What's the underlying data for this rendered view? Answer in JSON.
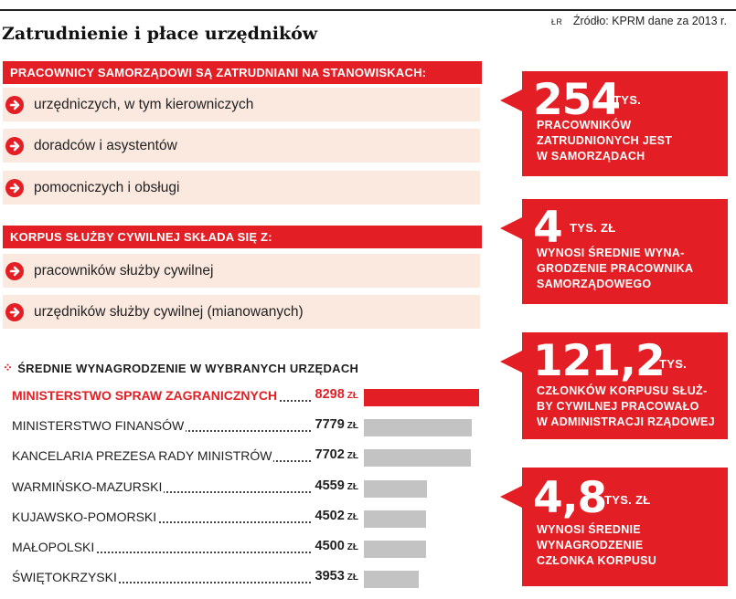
{
  "header": {
    "title": "Zatrudnienie i płace urzędników",
    "source_badge": "ŁR",
    "source": "Źródło: KPRM dane za 2013 r."
  },
  "section1": {
    "heading": "PRACOWNICY SAMORZĄDOWI SĄ ZATRUDNIANI NA STANOWISKACH:",
    "items": [
      "urzędniczych, w tym kierowniczych",
      "doradców i asystentów",
      "pomocniczych i obsługi"
    ]
  },
  "section2": {
    "heading": "KORPUS SŁUŻBY CYWILNEJ SKŁADA SIĘ Z:",
    "items": [
      "pracowników służby cywilnej",
      "urzędników służby cywilnej (mianowanych)"
    ]
  },
  "chart_data": {
    "type": "bar",
    "orientation": "horizontal",
    "title": "ŚREDNIE WYNAGRODZENIE W WYBRANYCH URZĘDACH",
    "unit": "ZŁ",
    "categories": [
      "MINISTERSTWO SPRAW ZAGRANICZNYCH",
      "MINISTERSTWO FINANSÓW",
      "KANCELARIA PREZESA RADY MINISTRÓW",
      "WARMIŃSKO-MAZURSKI",
      "KUJAWSKO-POMORSKI",
      "MAŁOPOLSKI",
      "ŚWIĘTOKRZYSKI"
    ],
    "values": [
      8298,
      7779,
      7702,
      4559,
      4502,
      4500,
      3953
    ],
    "value_labels": [
      "8298",
      "7779",
      "7702",
      "4559",
      "4502",
      "4500",
      "3953"
    ],
    "highlight_index": 0,
    "colors": {
      "highlight": "#e31e24",
      "default": "#c3c3c3"
    }
  },
  "stats": [
    {
      "number": "254",
      "unit": "TYS.",
      "desc": [
        "PRACOWNIKÓW",
        "ZATRUDNIONYCH JEST",
        "W SAMORZĄDACH"
      ]
    },
    {
      "number": "4",
      "unit": "TYS. ZŁ",
      "desc": [
        "WYNOSI ŚREDNIE WYNA-",
        "GRODZENIE PRACOWNIKA",
        "SAMORZĄDOWEGO"
      ]
    },
    {
      "number": "121,2",
      "unit": "TYS.",
      "desc": [
        "CZŁONKÓW KORPUSU SŁUŻ-",
        "BY CYWILNEJ PRACOWAŁO",
        "W ADMINISTRACJI RZĄDOWEJ"
      ]
    },
    {
      "number": "4,8",
      "unit": "TYS. ZŁ",
      "desc": [
        "WYNOSI ŚREDNIE",
        "WYNAGRODZENIE",
        "CZŁONKA KORPUSU"
      ]
    }
  ],
  "colors": {
    "accent": "#e31e24",
    "item_bg": "#fbe9df",
    "bar_gray": "#c3c3c3"
  }
}
